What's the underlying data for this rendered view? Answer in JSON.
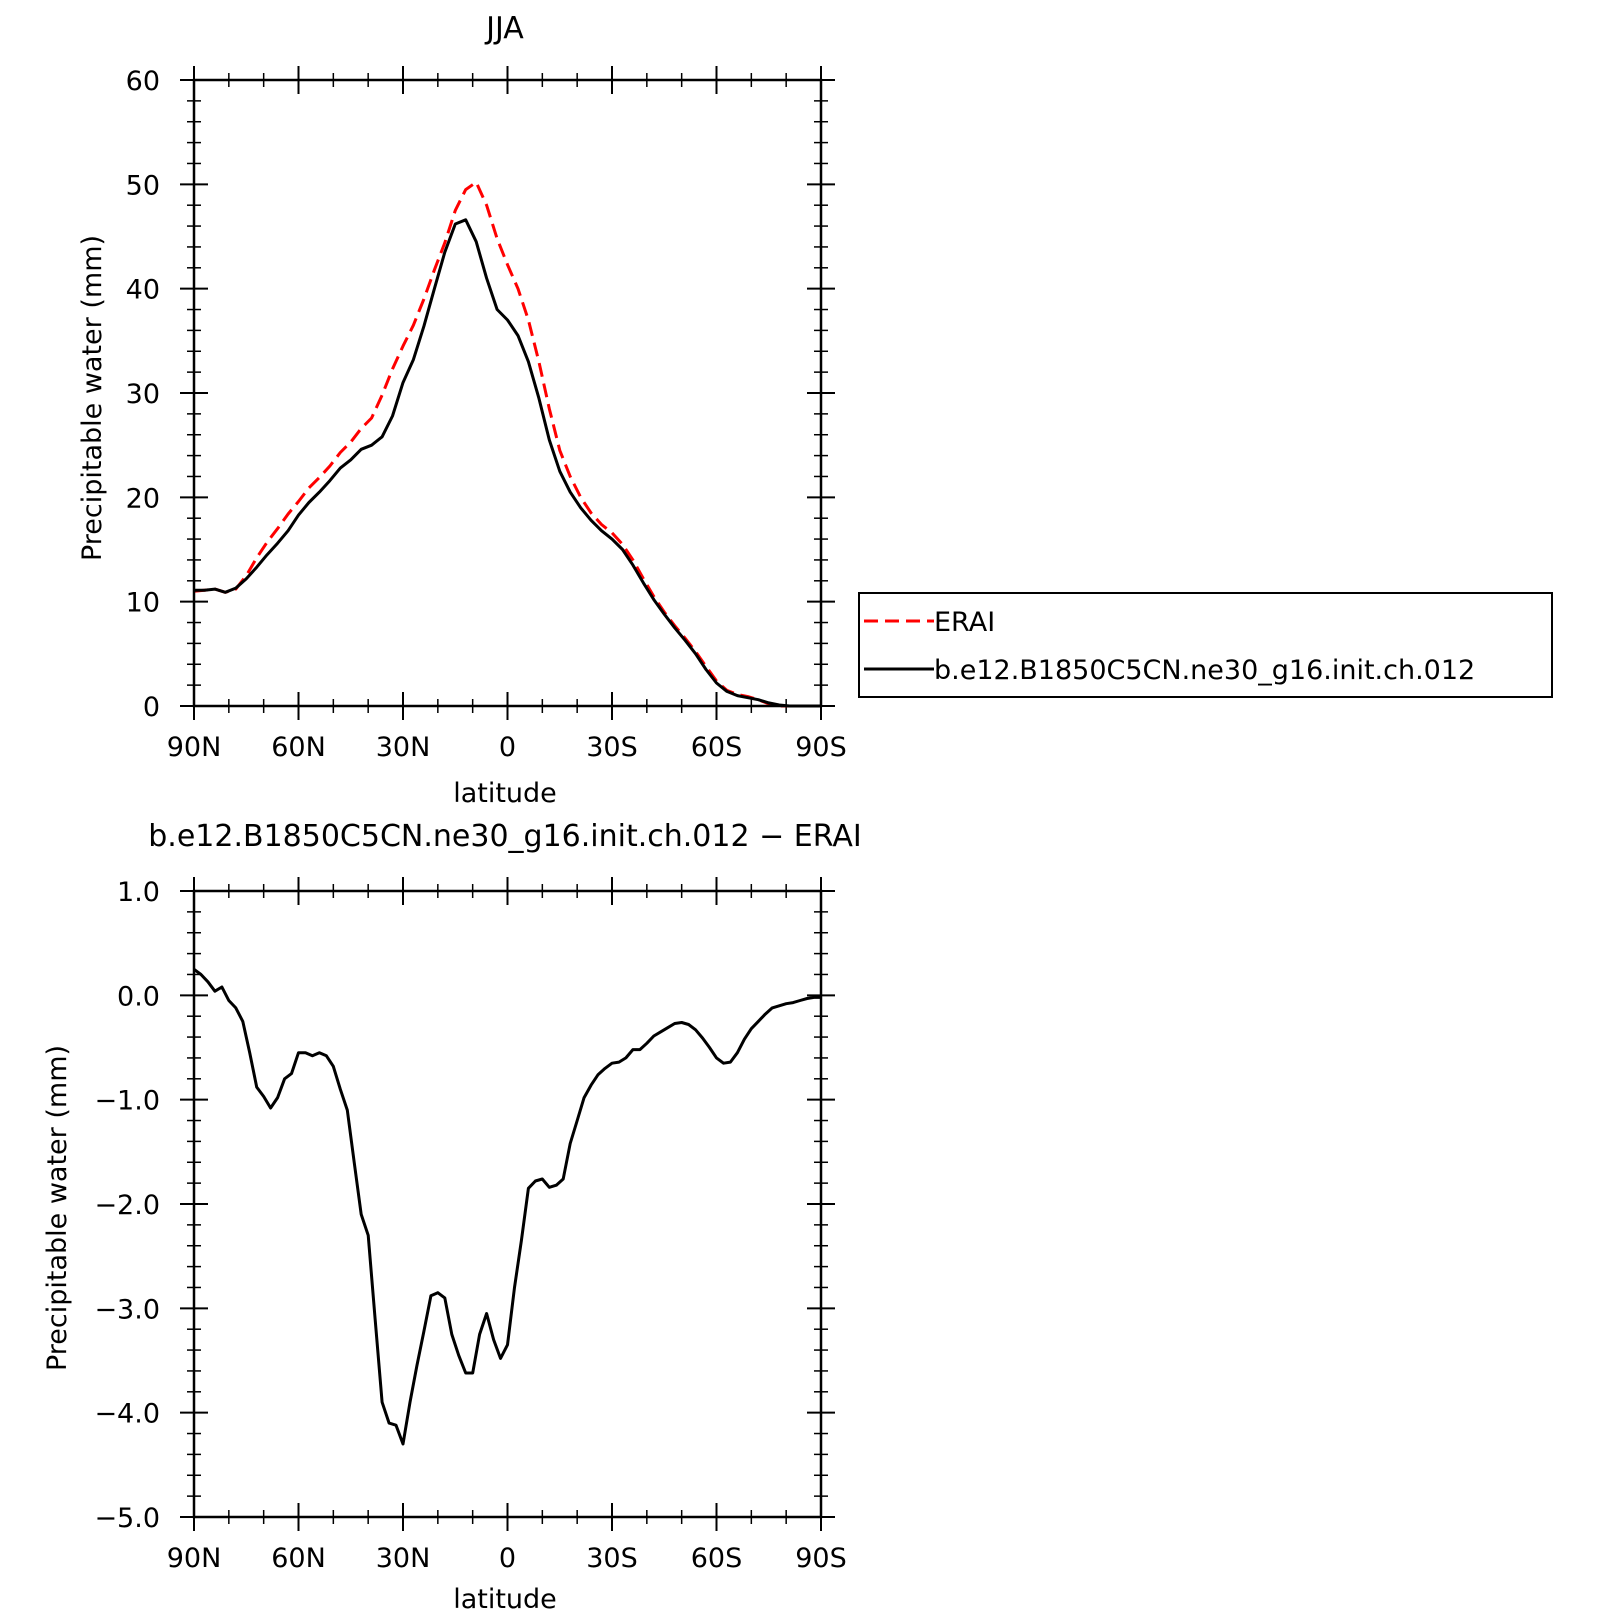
{
  "chart_data": [
    {
      "type": "line",
      "title": "JJA",
      "xlabel": "latitude",
      "ylabel": "Precipitable water (mm)",
      "xlim": [
        -90,
        90
      ],
      "ylim": [
        0,
        60
      ],
      "x_ticks": [
        {
          "value": -90,
          "label": "90N"
        },
        {
          "value": -60,
          "label": "60N"
        },
        {
          "value": -30,
          "label": "30N"
        },
        {
          "value": 0,
          "label": "0"
        },
        {
          "value": 30,
          "label": "30S"
        },
        {
          "value": 60,
          "label": "60S"
        },
        {
          "value": 90,
          "label": "90S"
        }
      ],
      "y_ticks": [
        {
          "value": 0,
          "label": "0"
        },
        {
          "value": 10,
          "label": "10"
        },
        {
          "value": 20,
          "label": "20"
        },
        {
          "value": 30,
          "label": "30"
        },
        {
          "value": 40,
          "label": "40"
        },
        {
          "value": 50,
          "label": "50"
        },
        {
          "value": 60,
          "label": "60"
        }
      ],
      "legend": {
        "placement": "right",
        "entries": [
          "ERAI",
          "b.e12.B1850C5CN.ne30_g16.init.ch.012"
        ]
      },
      "grid": false,
      "series": [
        {
          "name": "ERAI",
          "color": "#ff0000",
          "dash": true,
          "x": [
            -90,
            -87,
            -84,
            -81,
            -78,
            -75,
            -72,
            -69,
            -66,
            -63,
            -60,
            -57,
            -54,
            -51,
            -48,
            -45,
            -42,
            -39,
            -36,
            -33,
            -30,
            -27,
            -24,
            -21,
            -18,
            -15,
            -12,
            -9,
            -6,
            -3,
            0,
            3,
            6,
            9,
            12,
            15,
            18,
            21,
            24,
            27,
            30,
            33,
            36,
            39,
            42,
            45,
            48,
            51,
            54,
            57,
            60,
            63,
            66,
            69,
            72,
            75,
            78,
            81,
            84,
            87,
            90
          ],
          "y": [
            11.0,
            11.1,
            11.2,
            10.9,
            11.2,
            12.5,
            14.2,
            15.7,
            17.0,
            18.4,
            19.6,
            20.9,
            21.9,
            23.0,
            24.3,
            25.3,
            26.6,
            27.6,
            29.8,
            32.3,
            34.5,
            36.5,
            39.0,
            41.8,
            44.4,
            47.5,
            49.5,
            50.2,
            48.0,
            44.8,
            42.3,
            40.0,
            37.0,
            33.0,
            28.5,
            24.5,
            22.0,
            20.0,
            18.5,
            17.4,
            16.6,
            15.5,
            14.0,
            12.2,
            10.5,
            9.0,
            7.7,
            6.5,
            5.2,
            3.8,
            2.4,
            1.5,
            1.1,
            0.9,
            0.6,
            0.2,
            0.0,
            0.0,
            0.0,
            0.0,
            0.0
          ]
        },
        {
          "name": "b.e12.B1850C5CN.ne30_g16.init.ch.012",
          "color": "#000000",
          "dash": false,
          "x": [
            -90,
            -87,
            -84,
            -81,
            -78,
            -75,
            -72,
            -69,
            -66,
            -63,
            -60,
            -57,
            -54,
            -51,
            -48,
            -45,
            -42,
            -39,
            -36,
            -33,
            -30,
            -27,
            -24,
            -21,
            -18,
            -15,
            -12,
            -9,
            -6,
            -3,
            0,
            3,
            6,
            9,
            12,
            15,
            18,
            21,
            24,
            27,
            30,
            33,
            36,
            39,
            42,
            45,
            48,
            51,
            54,
            57,
            60,
            63,
            66,
            69,
            72,
            75,
            78,
            81,
            84,
            87,
            90
          ],
          "y": [
            11.1,
            11.1,
            11.2,
            10.9,
            11.3,
            12.2,
            13.3,
            14.5,
            15.6,
            16.8,
            18.3,
            19.5,
            20.5,
            21.6,
            22.8,
            23.6,
            24.6,
            25.0,
            25.8,
            27.8,
            31.0,
            33.2,
            36.4,
            40.0,
            43.5,
            46.2,
            46.6,
            44.5,
            41.0,
            38.0,
            37.0,
            35.5,
            33.0,
            29.5,
            25.5,
            22.5,
            20.5,
            19.0,
            17.8,
            16.8,
            16.0,
            15.0,
            13.5,
            11.8,
            10.2,
            8.8,
            7.5,
            6.3,
            5.0,
            3.5,
            2.2,
            1.4,
            1.0,
            0.8,
            0.6,
            0.3,
            0.1,
            0.0,
            0.0,
            0.0,
            0.0
          ]
        }
      ]
    },
    {
      "type": "line",
      "title": "b.e12.B1850C5CN.ne30_g16.init.ch.012 − ERAI",
      "xlabel": "latitude",
      "ylabel": "Precipitable water (mm)",
      "xlim": [
        -90,
        90
      ],
      "ylim": [
        -5,
        1
      ],
      "x_ticks": [
        {
          "value": -90,
          "label": "90N"
        },
        {
          "value": -60,
          "label": "60N"
        },
        {
          "value": -30,
          "label": "30N"
        },
        {
          "value": 0,
          "label": "0"
        },
        {
          "value": 30,
          "label": "30S"
        },
        {
          "value": 60,
          "label": "60S"
        },
        {
          "value": 90,
          "label": "90S"
        }
      ],
      "y_ticks": [
        {
          "value": -5,
          "label": "−5.0"
        },
        {
          "value": -4,
          "label": "−4.0"
        },
        {
          "value": -3,
          "label": "−3.0"
        },
        {
          "value": -2,
          "label": "−2.0"
        },
        {
          "value": -1,
          "label": "−1.0"
        },
        {
          "value": 0,
          "label": "0.0"
        },
        {
          "value": 1,
          "label": "1.0"
        }
      ],
      "grid": false,
      "series": [
        {
          "color": "#000000",
          "dash": false,
          "x": [
            -90,
            -88,
            -86,
            -84,
            -82,
            -80,
            -78,
            -76,
            -74,
            -72,
            -70,
            -68,
            -66,
            -64,
            -62,
            -60,
            -58,
            -56,
            -54,
            -52,
            -50,
            -48,
            -46,
            -44,
            -42,
            -40,
            -38,
            -36,
            -34,
            -32,
            -30,
            -28,
            -26,
            -24,
            -22,
            -20,
            -18,
            -16,
            -14,
            -12,
            -10,
            -8,
            -6,
            -4,
            -2,
            0,
            2,
            4,
            6,
            8,
            10,
            12,
            14,
            16,
            18,
            20,
            22,
            24,
            26,
            28,
            30,
            32,
            34,
            36,
            38,
            40,
            42,
            44,
            46,
            48,
            50,
            52,
            54,
            56,
            58,
            60,
            62,
            64,
            66,
            68,
            70,
            72,
            74,
            76,
            78,
            80,
            82,
            84,
            86,
            88,
            90
          ],
          "y": [
            0.25,
            0.2,
            0.13,
            0.04,
            0.08,
            -0.05,
            -0.12,
            -0.25,
            -0.55,
            -0.88,
            -0.97,
            -1.08,
            -0.98,
            -0.8,
            -0.75,
            -0.55,
            -0.55,
            -0.58,
            -0.55,
            -0.58,
            -0.68,
            -0.9,
            -1.1,
            -1.6,
            -2.1,
            -2.3,
            -3.1,
            -3.9,
            -4.1,
            -4.12,
            -4.3,
            -3.9,
            -3.55,
            -3.22,
            -2.88,
            -2.85,
            -2.9,
            -3.25,
            -3.45,
            -3.62,
            -3.62,
            -3.25,
            -3.05,
            -3.3,
            -3.48,
            -3.35,
            -2.8,
            -2.35,
            -1.85,
            -1.78,
            -1.76,
            -1.84,
            -1.82,
            -1.76,
            -1.42,
            -1.2,
            -0.98,
            -0.86,
            -0.76,
            -0.7,
            -0.65,
            -0.64,
            -0.6,
            -0.52,
            -0.52,
            -0.46,
            -0.39,
            -0.35,
            -0.31,
            -0.27,
            -0.26,
            -0.28,
            -0.33,
            -0.41,
            -0.5,
            -0.6,
            -0.65,
            -0.64,
            -0.55,
            -0.42,
            -0.32,
            -0.25,
            -0.18,
            -0.12,
            -0.1,
            -0.08,
            -0.07,
            -0.05,
            -0.03,
            -0.02,
            -0.02
          ]
        }
      ]
    }
  ]
}
